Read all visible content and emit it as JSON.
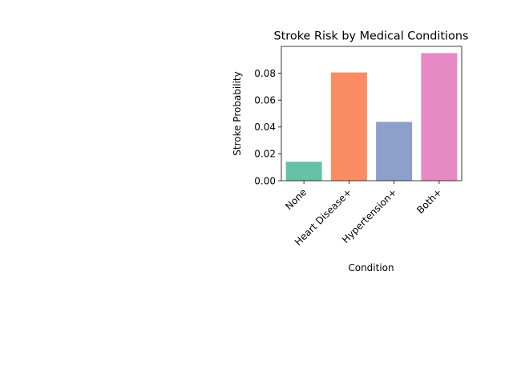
{
  "chart_data": {
    "type": "bar",
    "title": "Stroke Risk by Medical Conditions",
    "xlabel": "Condition",
    "ylabel": "Stroke Probability",
    "categories": [
      "None",
      "Heart Disease+",
      "Hypertension+",
      "Both+"
    ],
    "values": [
      0.0141,
      0.0806,
      0.0438,
      0.095
    ],
    "colors": [
      "#66c2a5",
      "#fc8d62",
      "#8da0cb",
      "#e78ac3"
    ],
    "yticks": [
      0.0,
      0.02,
      0.04,
      0.06,
      0.08
    ],
    "ytick_labels": [
      "0.00",
      "0.02",
      "0.04",
      "0.06",
      "0.08"
    ],
    "ylim": [
      0,
      0.1
    ],
    "grid": false,
    "legend": "none"
  }
}
